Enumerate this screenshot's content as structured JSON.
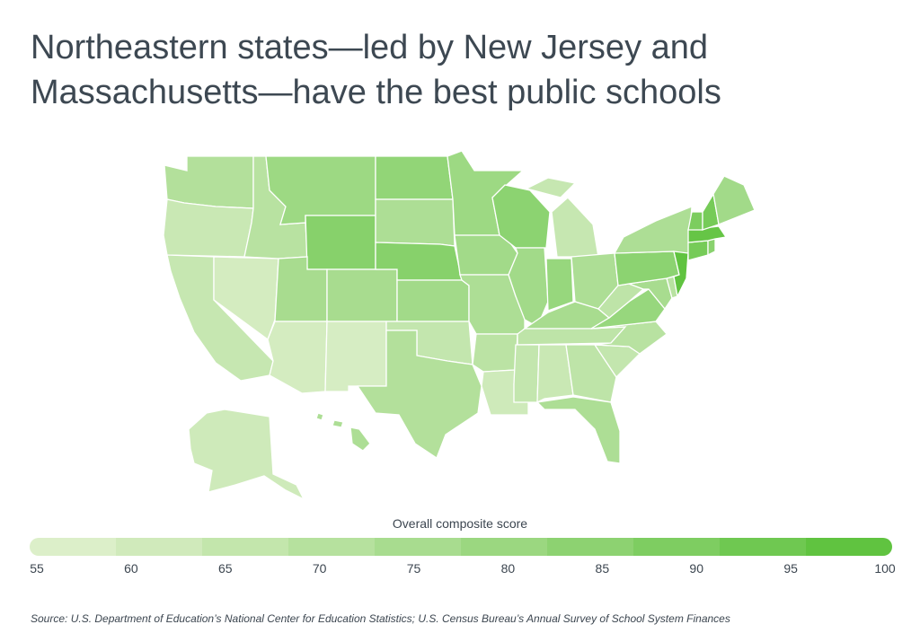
{
  "title": {
    "line1": "Northeastern states—led by New Jersey and",
    "line2": "Massachusetts—have the best public schools"
  },
  "legend": {
    "title": "Overall composite score",
    "ticks": [
      "55",
      "60",
      "65",
      "70",
      "75",
      "80",
      "85",
      "90",
      "95",
      "100"
    ],
    "min": 55,
    "max": 100,
    "colors": [
      "#dcefc9",
      "#d0eabb",
      "#c3e6ac",
      "#b6e19e",
      "#a8dc8f",
      "#9bd780",
      "#8dd271",
      "#7ecd61",
      "#6fc851",
      "#60c340"
    ]
  },
  "source": "Source:  U.S. Department of Education’s National Center for Education Statistics; U.S. Census Bureau’s Annual Survey of School System Finances",
  "map_data": {
    "WA": 70,
    "OR": 62,
    "CA": 63,
    "NV": 58,
    "ID": 68,
    "MT": 78,
    "WY": 86,
    "UT": 74,
    "AZ": 58,
    "NM": 57,
    "CO": 74,
    "ND": 82,
    "SD": 72,
    "NE": 86,
    "KS": 76,
    "OK": 64,
    "TX": 70,
    "MN": 78,
    "IA": 76,
    "MO": 72,
    "AR": 67,
    "LA": 60,
    "WI": 84,
    "IL": 76,
    "MI": 63,
    "IN": 80,
    "OH": 72,
    "KY": 74,
    "TN": 66,
    "MS": 64,
    "AL": 62,
    "GA": 66,
    "FL": 72,
    "SC": 64,
    "NC": 68,
    "VA": 80,
    "WV": 66,
    "MD": 74,
    "DE": 68,
    "PA": 84,
    "NY": 72,
    "NJ": 100,
    "CT": 92,
    "RI": 85,
    "MA": 98,
    "VT": 90,
    "NH": 92,
    "ME": 76,
    "AK": 60,
    "HI": 72
  }
}
